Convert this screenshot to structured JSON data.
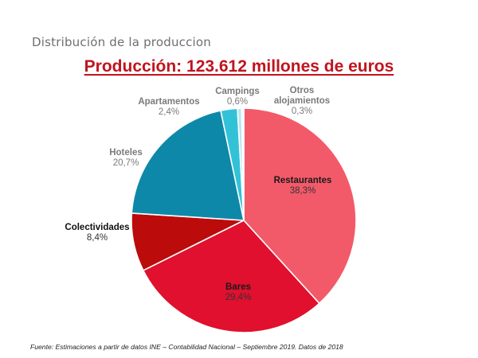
{
  "slide": {
    "heading": "Distribución de la produccion",
    "source": "Fuente: Estimaciones a partir de datos INE – Contabilidad Nacional – Septiembre 2019. Datos de 2018"
  },
  "chart_data": {
    "type": "pie",
    "title": "Producción: 123.612 millones de euros",
    "slices": [
      {
        "label": "Restaurantes",
        "display": "38,3%",
        "value": 38.3,
        "color": "#f25a6a",
        "label_color": "#1a1a1a"
      },
      {
        "label": "Bares",
        "display": "29,4%",
        "value": 29.4,
        "color": "#e0102e",
        "label_color": "#1a1a1a"
      },
      {
        "label": "Colectividades",
        "display": "8,4%",
        "value": 8.4,
        "color": "#bb0b0b",
        "label_color": "#111111"
      },
      {
        "label": "Hoteles",
        "display": "20,7%",
        "value": 20.7,
        "color": "#0e88a8",
        "label_color": "#7a7a7a"
      },
      {
        "label": "Apartamentos",
        "display": "2,4%",
        "value": 2.4,
        "color": "#32c2d8",
        "label_color": "#7a7a7a"
      },
      {
        "label": "Campings",
        "display": "0,6%",
        "value": 0.6,
        "color": "#b8e6ee",
        "label_color": "#7a7a7a"
      },
      {
        "label": "Otros alojamientos",
        "display": "0,3%",
        "value": 0.3,
        "color": "#e6f6f9",
        "label_color": "#7a7a7a"
      }
    ],
    "start_angle_deg": 0,
    "direction": "clockwise"
  }
}
